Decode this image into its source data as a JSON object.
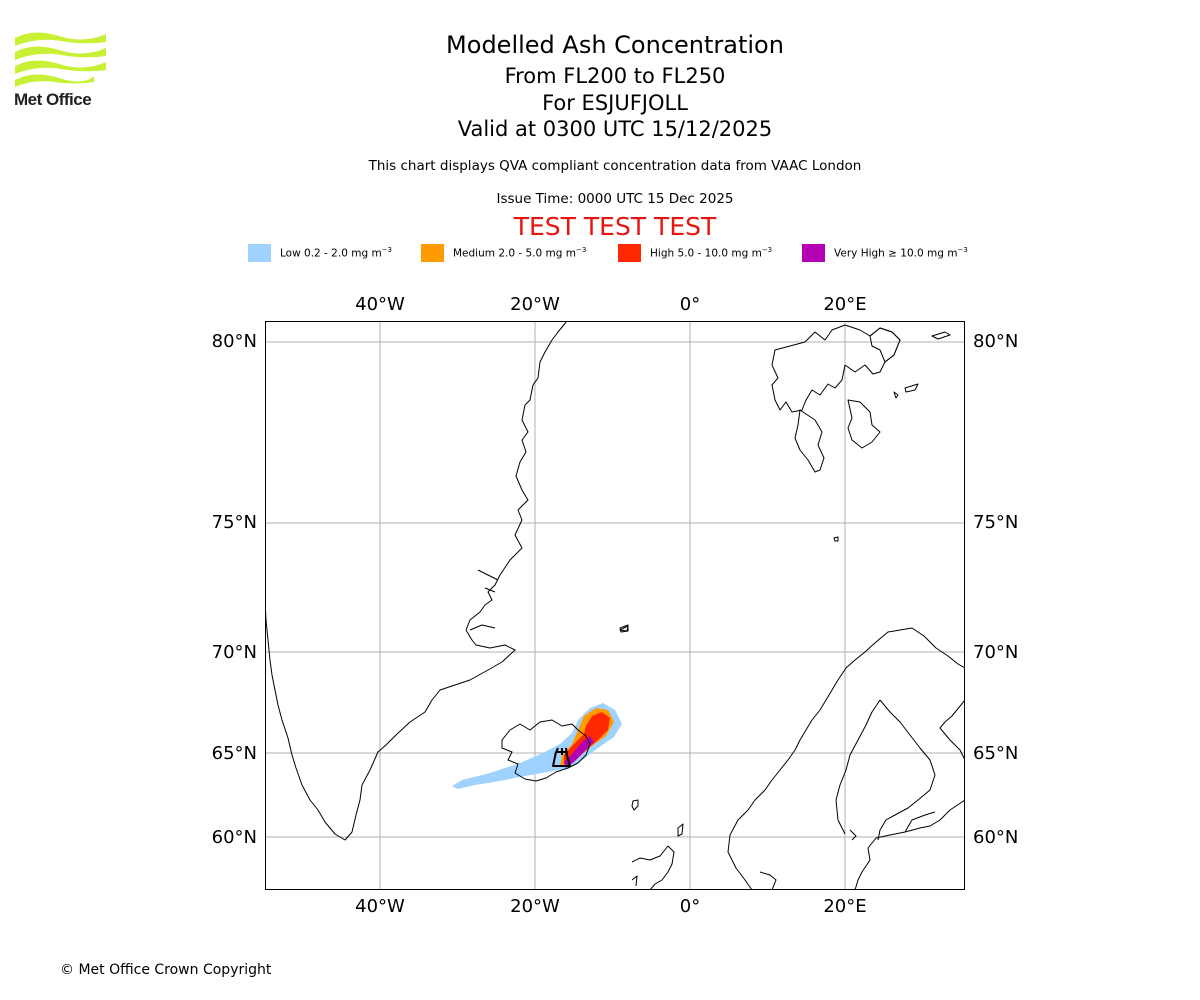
{
  "logo": {
    "brand": "Met Office",
    "brand_color": "#c8f035"
  },
  "header": {
    "title": "Modelled Ash Concentration",
    "flight_levels": "From FL200 to FL250",
    "volcano": "For ESJUFJOLL",
    "valid_time": "Valid at 0300 UTC 15/12/2025",
    "compliance_note": "This chart displays QVA compliant concentration data from VAAC London",
    "issue_time": "Issue Time: 0000 UTC 15 Dec 2025",
    "test_banner": "TEST TEST TEST"
  },
  "legend": [
    {
      "label": "Low 0.2 - 2.0 mg m",
      "unit_exp": "−3",
      "color": "#a0d2ff"
    },
    {
      "label": "Medium 2.0 - 5.0 mg m",
      "unit_exp": "−3",
      "color": "#ff9a00"
    },
    {
      "label": "High 5.0 - 10.0 mg m",
      "unit_exp": "−3",
      "color": "#ff2800"
    },
    {
      "label": "Very High  ≥  10.0 mg m",
      "unit_exp": "−3",
      "color": "#b400b4"
    }
  ],
  "map": {
    "lon_ticks": [
      "40°W",
      "20°W",
      "0°",
      "20°E"
    ],
    "lat_ticks": [
      "80°N",
      "75°N",
      "70°N",
      "65°N",
      "60°N"
    ],
    "gridline_color": "#b0b0b0",
    "coastline_color": "#000000"
  },
  "footer": {
    "copyright": "© Met Office Crown Copyright"
  }
}
